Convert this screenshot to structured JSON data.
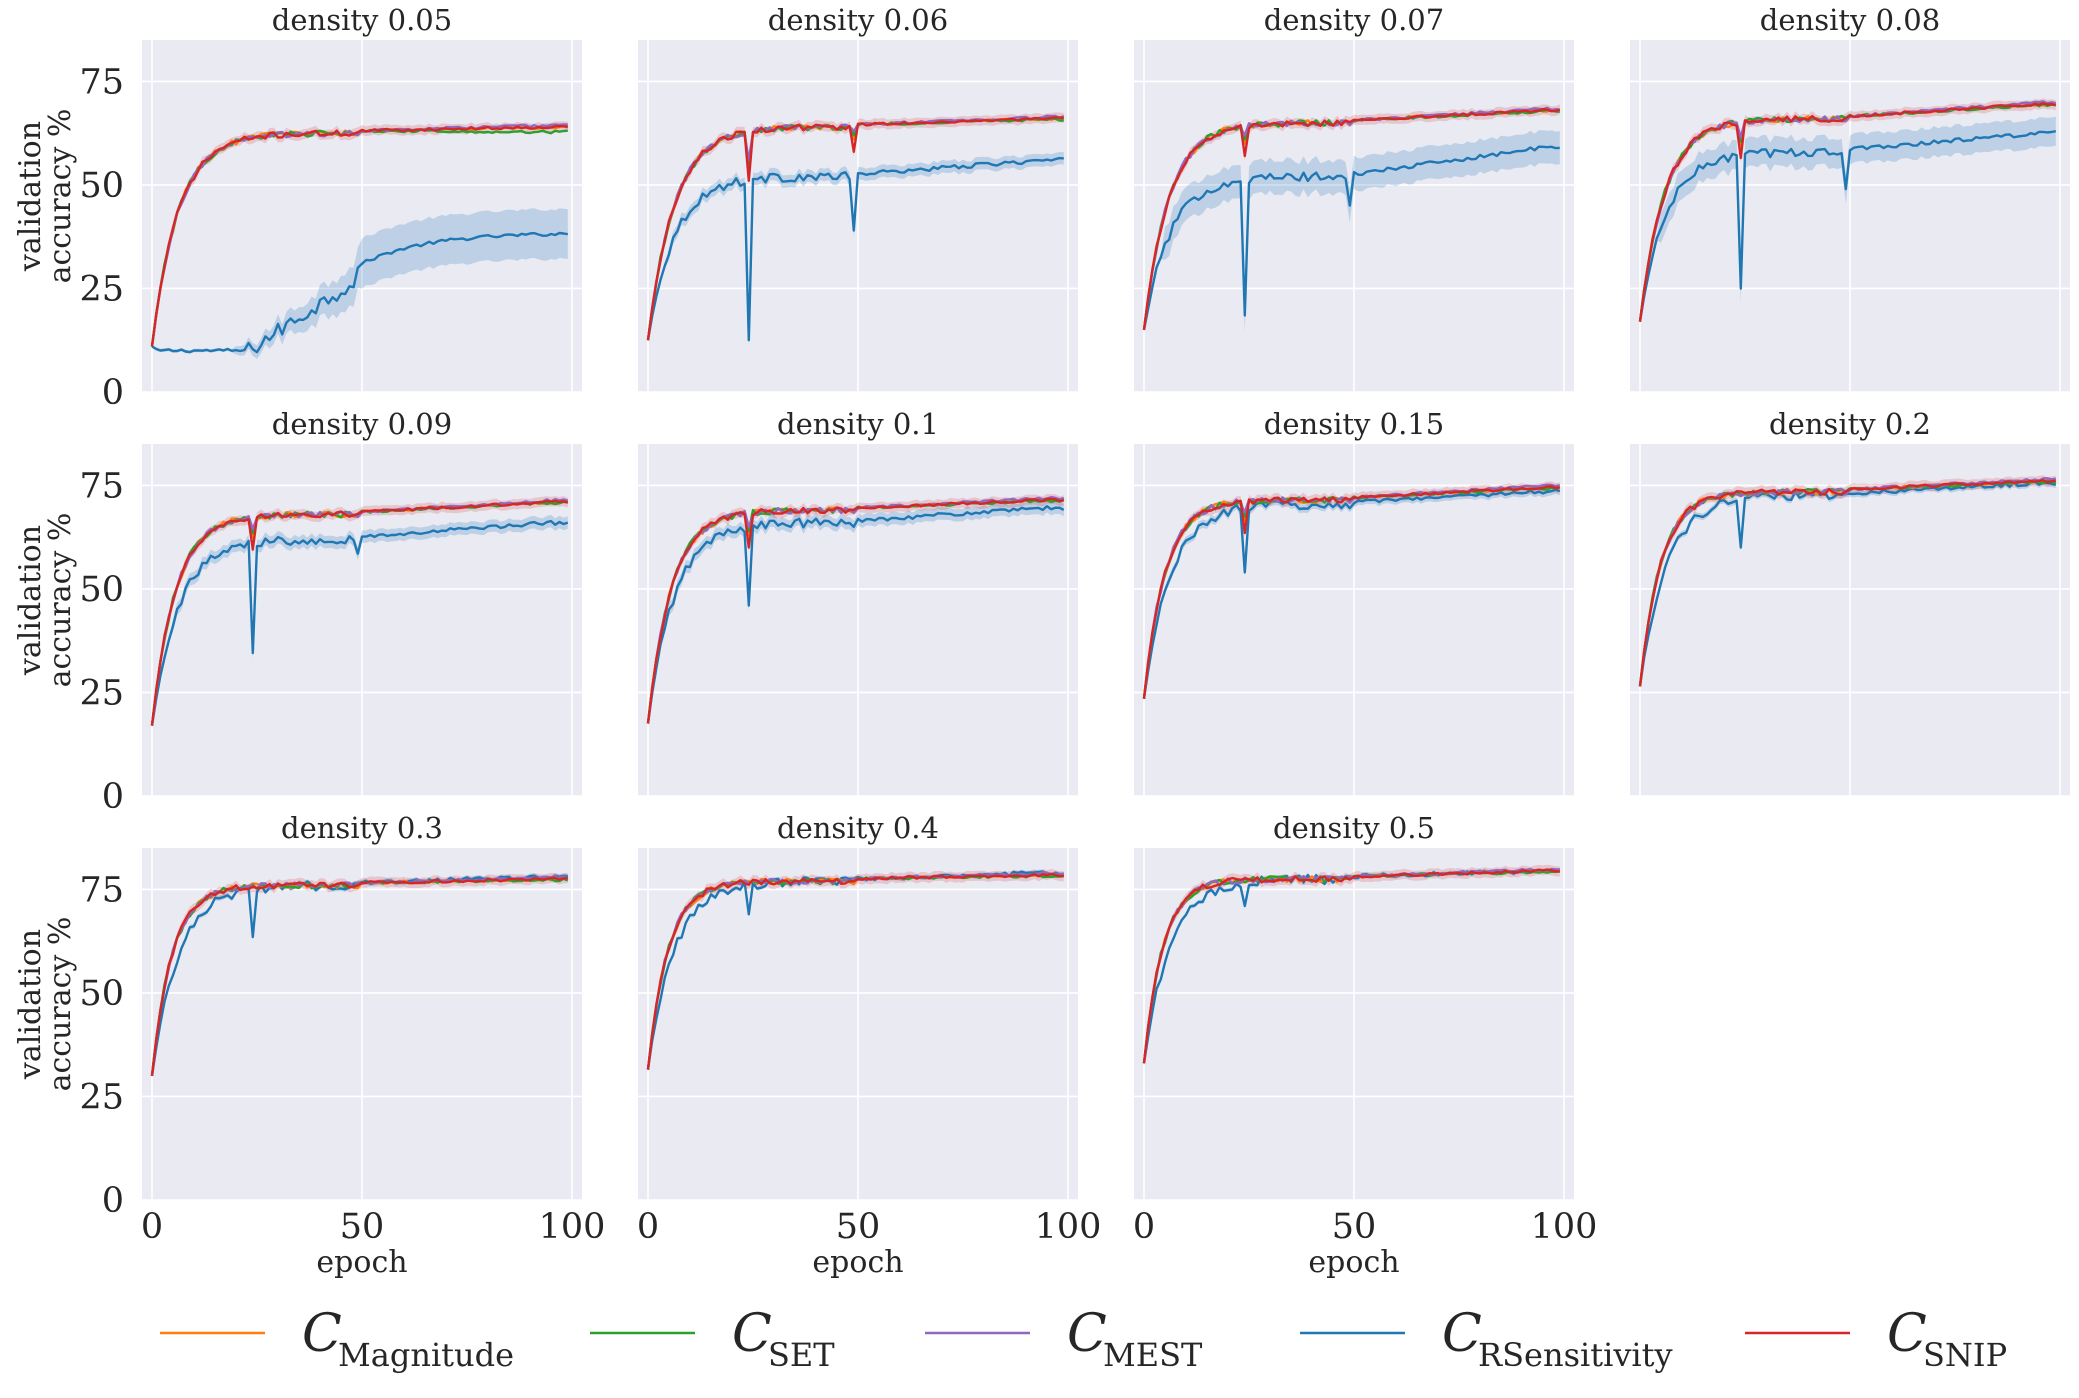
{
  "chart_data": {
    "type": "line",
    "figure": "grid of 11 line charts",
    "xlabel": "epoch",
    "ylabel_line1": "validation",
    "ylabel_line2": "accuracy %",
    "xlim": [
      0,
      100
    ],
    "ylim": [
      0,
      85
    ],
    "x_ticks": [
      "0",
      "50",
      "100"
    ],
    "y_ticks": [
      "0",
      "25",
      "50",
      "75"
    ],
    "legend_symbol": "C",
    "legend": [
      {
        "key": "magnitude",
        "label": "Magnitude",
        "color": "#ff7f0e"
      },
      {
        "key": "set",
        "label": "SET",
        "color": "#2ca02c"
      },
      {
        "key": "mest",
        "label": "MEST",
        "color": "#9467bd"
      },
      {
        "key": "rsens",
        "label": "RSensitivity",
        "color": "#1f77b4"
      },
      {
        "key": "snip",
        "label": "SNIP",
        "color": "#d62728"
      }
    ],
    "panels": [
      {
        "title": "density 0.05",
        "main": {
          "start": 11,
          "plateau1": 62.5,
          "final": 64,
          "k": 0.16
        },
        "rsens": {
          "start": 11,
          "plateau1": 10.5,
          "final": 38.5,
          "band": 6,
          "spikes": [
            [
              49,
              30
            ]
          ],
          "delayed": true
        }
      },
      {
        "title": "density 0.06",
        "main": {
          "start": 12.5,
          "plateau1": 64,
          "final": 66,
          "k": 0.16,
          "dips": [
            [
              24,
              51
            ],
            [
              49,
              58
            ]
          ]
        },
        "rsens": {
          "start": 12.5,
          "plateau1": 52,
          "final": 56,
          "band": 1.5,
          "spikes": [
            [
              24,
              12.5
            ],
            [
              49,
              39
            ]
          ]
        }
      },
      {
        "title": "density 0.07",
        "main": {
          "start": 15,
          "plateau1": 65,
          "final": 68,
          "k": 0.17,
          "dips": [
            [
              24,
              57
            ]
          ]
        },
        "rsens": {
          "start": 15,
          "plateau1": 52,
          "final": 59,
          "band": 4,
          "spikes": [
            [
              24,
              18.5
            ],
            [
              49,
              45
            ]
          ]
        }
      },
      {
        "title": "density 0.08",
        "main": {
          "start": 17,
          "plateau1": 66,
          "final": 69.5,
          "k": 0.17,
          "dips": [
            [
              24,
              56.5
            ]
          ]
        },
        "rsens": {
          "start": 17,
          "plateau1": 58,
          "final": 62.5,
          "band": 3.5,
          "spikes": [
            [
              24,
              25
            ],
            [
              49,
              49
            ]
          ]
        }
      },
      {
        "title": "density 0.09",
        "main": {
          "start": 17,
          "plateau1": 68,
          "final": 71,
          "k": 0.18,
          "dips": [
            [
              24,
              59.5
            ]
          ]
        },
        "rsens": {
          "start": 17,
          "plateau1": 62,
          "final": 66,
          "band": 1.5,
          "spikes": [
            [
              24,
              34.5
            ],
            [
              49,
              58.5
            ]
          ]
        }
      },
      {
        "title": "density 0.1",
        "main": {
          "start": 17.5,
          "plateau1": 69,
          "final": 71.5,
          "k": 0.18,
          "dips": [
            [
              24,
              60
            ]
          ]
        },
        "rsens": {
          "start": 17.5,
          "plateau1": 66,
          "final": 69.5,
          "band": 1.5,
          "spikes": [
            [
              24,
              46
            ],
            [
              49,
              65
            ]
          ]
        }
      },
      {
        "title": "density 0.15",
        "main": {
          "start": 23.5,
          "plateau1": 71.5,
          "final": 74.5,
          "k": 0.2,
          "dips": [
            [
              24,
              63.5
            ]
          ]
        },
        "rsens": {
          "start": 23.5,
          "plateau1": 70.5,
          "final": 73.5,
          "band": 1,
          "spikes": [
            [
              24,
              54
            ],
            [
              49,
              69.5
            ]
          ]
        }
      },
      {
        "title": "density 0.2",
        "main": {
          "start": 26.5,
          "plateau1": 73.5,
          "final": 76,
          "k": 0.2
        },
        "rsens": {
          "start": 26.5,
          "plateau1": 72.5,
          "final": 75.5,
          "band": 0.8,
          "spikes": [
            [
              24,
              60
            ]
          ]
        }
      },
      {
        "title": "density 0.3",
        "main": {
          "start": 30,
          "plateau1": 76,
          "final": 77.5,
          "k": 0.21
        },
        "rsens": {
          "start": 30,
          "plateau1": 76,
          "final": 78,
          "band": 0.6,
          "spikes": [
            [
              24,
              63.5
            ]
          ]
        }
      },
      {
        "title": "density 0.4",
        "main": {
          "start": 31.5,
          "plateau1": 77,
          "final": 78.5,
          "k": 0.21
        },
        "rsens": {
          "start": 31.5,
          "plateau1": 77,
          "final": 79,
          "band": 0.5,
          "spikes": [
            [
              24,
              69
            ]
          ]
        }
      },
      {
        "title": "density 0.5",
        "main": {
          "start": 33,
          "plateau1": 77.5,
          "final": 79.5,
          "k": 0.22
        },
        "rsens": {
          "start": 33,
          "plateau1": 77.5,
          "final": 79.5,
          "band": 0.5,
          "spikes": [
            [
              24,
              71
            ]
          ]
        }
      }
    ]
  }
}
